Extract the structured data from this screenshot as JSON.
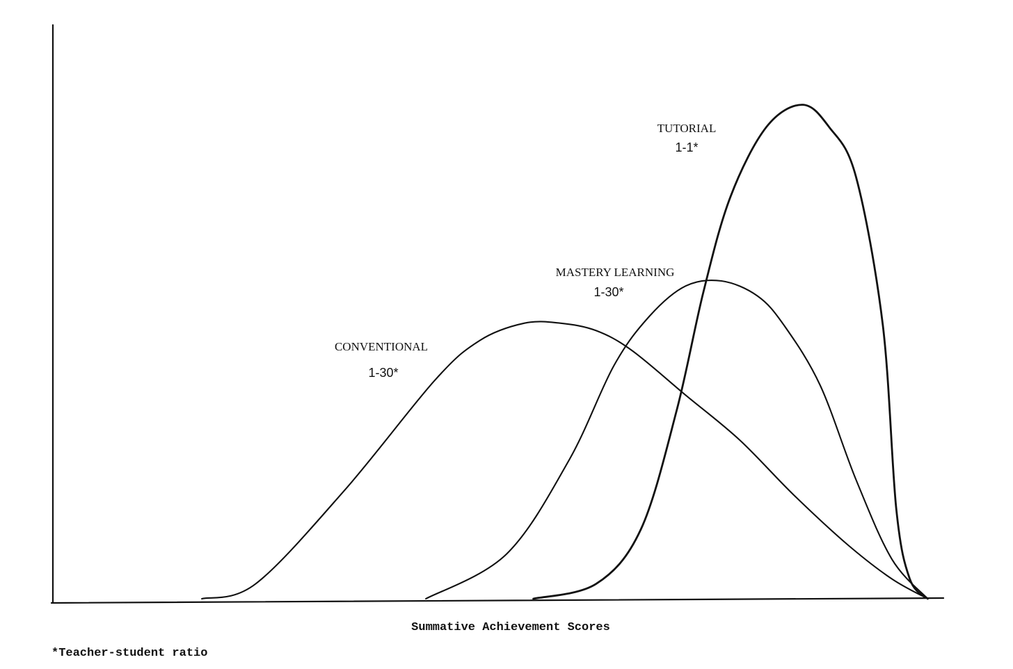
{
  "chart_data": {
    "type": "line",
    "title": "",
    "xlabel": "Summative Achievement Scores",
    "ylabel": "",
    "xlim": [
      0,
      100
    ],
    "ylim": [
      0,
      100
    ],
    "grid": false,
    "legend": "none",
    "series": [
      {
        "name": "CONVENTIONAL",
        "ratio": "1-30*",
        "x": [
          16,
          22,
          32,
          42,
          47,
          52,
          56,
          60,
          64,
          70,
          76,
          82,
          88,
          93,
          97
        ],
        "y": [
          0,
          3,
          22,
          44,
          52,
          55.5,
          55.5,
          54,
          50,
          41,
          32,
          21,
          11,
          4,
          0
        ]
      },
      {
        "name": "MASTERY LEARNING",
        "ratio": "1-30*",
        "x": [
          41,
          50,
          57,
          62,
          66,
          70,
          74,
          78,
          81,
          85,
          89,
          93,
          97
        ],
        "y": [
          0,
          9,
          28,
          47,
          57,
          63,
          64,
          61,
          55,
          43,
          24,
          8,
          0
        ]
      },
      {
        "name": "TUTORIAL",
        "ratio": "1-1*",
        "x": [
          53,
          60,
          65,
          69,
          72,
          75,
          79,
          83,
          86,
          89,
          92,
          93.5,
          95,
          97
        ],
        "y": [
          0,
          3,
          14,
          38,
          62,
          81,
          95,
          99.5,
          95,
          85,
          55,
          18,
          4,
          0
        ]
      }
    ]
  },
  "footnote": "*Teacher-student ratio"
}
